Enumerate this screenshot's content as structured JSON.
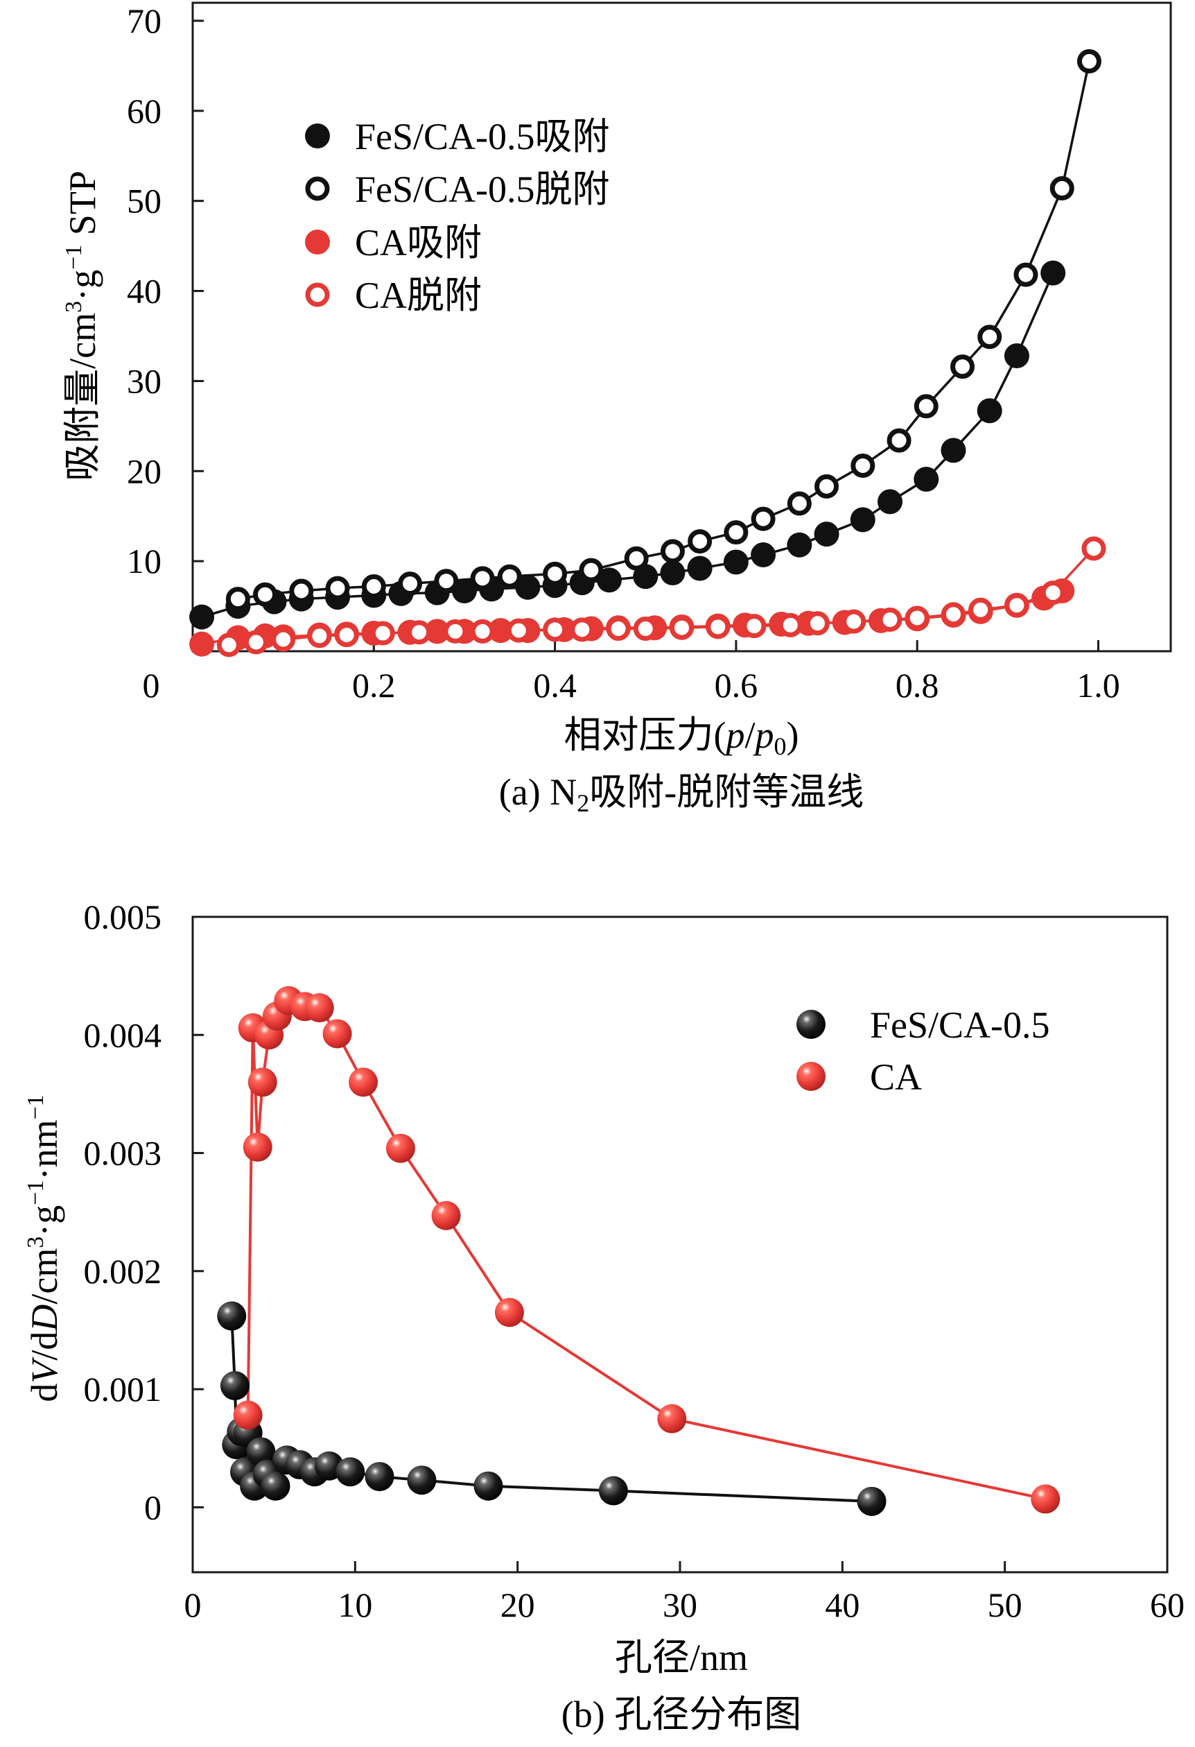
{
  "colors": {
    "black_series": "#111111",
    "red_series": "#e53935",
    "axis": "#1a1a1a"
  },
  "chart_data": [
    {
      "id": "a",
      "type": "scatter",
      "caption": {
        "prefix": "(a) N",
        "sub": "2",
        "suffix": "吸附-脱附等温线"
      },
      "xlabel": {
        "prefix": "相对压力(",
        "p": "p",
        "slash": "/",
        "p0": "p",
        "sub": "0",
        "close": ")"
      },
      "ylabel": {
        "main": "吸附量/cm",
        "sup1": "3",
        "mid": "·g",
        "sup2": "−1",
        "end": " STP"
      },
      "xlim": [
        0,
        1.08
      ],
      "ylim": [
        0,
        72
      ],
      "xticks": [
        0.2,
        0.4,
        0.6,
        0.8,
        1.0
      ],
      "xtick_labels": [
        "0.2",
        "0.4",
        "0.6",
        "0.8",
        "1.0"
      ],
      "yticks": [
        10,
        20,
        30,
        40,
        50,
        60,
        70
      ],
      "ytick_labels": [
        "10",
        "20",
        "30",
        "40",
        "50",
        "60",
        "70"
      ],
      "origin_label": "0",
      "legend_position": "upper-left",
      "series": [
        {
          "name": "FeS/CA-0.5吸附",
          "color": "#111111",
          "filled": true,
          "x": [
            0.01,
            0.05,
            0.09,
            0.12,
            0.16,
            0.2,
            0.23,
            0.27,
            0.3,
            0.33,
            0.37,
            0.4,
            0.43,
            0.46,
            0.5,
            0.53,
            0.56,
            0.6,
            0.63,
            0.67,
            0.7,
            0.74,
            0.77,
            0.81,
            0.84,
            0.88,
            0.91,
            0.95
          ],
          "y": [
            3.8,
            5.0,
            5.5,
            5.8,
            6.0,
            6.2,
            6.4,
            6.5,
            6.7,
            6.9,
            7.1,
            7.3,
            7.6,
            7.9,
            8.3,
            8.7,
            9.2,
            9.9,
            10.7,
            11.8,
            13.0,
            14.6,
            16.6,
            19.1,
            22.3,
            26.7,
            32.8,
            42.0
          ]
        },
        {
          "name": "FeS/CA-0.5脱附",
          "color": "#111111",
          "filled": false,
          "x": [
            0.99,
            0.96,
            0.92,
            0.88,
            0.85,
            0.81,
            0.78,
            0.74,
            0.7,
            0.67,
            0.63,
            0.6,
            0.56,
            0.53,
            0.49,
            0.44,
            0.4,
            0.35,
            0.32,
            0.28,
            0.24,
            0.2,
            0.16,
            0.12,
            0.08,
            0.05
          ],
          "y": [
            65.5,
            51.4,
            41.8,
            34.9,
            31.6,
            27.2,
            23.4,
            20.6,
            18.3,
            16.4,
            14.7,
            13.2,
            12.2,
            11.1,
            10.3,
            9.0,
            8.6,
            8.3,
            8.1,
            7.8,
            7.5,
            7.2,
            7.0,
            6.7,
            6.3,
            5.8
          ]
        },
        {
          "name": "CA吸附",
          "color": "#e53935",
          "filled": true,
          "x": [
            0.01,
            0.05,
            0.08,
            0.1,
            0.14,
            0.17,
            0.2,
            0.24,
            0.27,
            0.3,
            0.34,
            0.37,
            0.41,
            0.44,
            0.47,
            0.51,
            0.54,
            0.58,
            0.61,
            0.65,
            0.68,
            0.72,
            0.76,
            0.8,
            0.84,
            0.87,
            0.91,
            0.94,
            0.96
          ],
          "y": [
            0.8,
            1.5,
            1.7,
            1.6,
            1.8,
            1.9,
            2.0,
            2.1,
            2.2,
            2.2,
            2.3,
            2.3,
            2.4,
            2.5,
            2.6,
            2.6,
            2.7,
            2.8,
            2.9,
            3.0,
            3.1,
            3.2,
            3.4,
            3.6,
            4.0,
            4.4,
            5.1,
            5.9,
            6.7
          ]
        },
        {
          "name": "CA脱附",
          "color": "#e53935",
          "filled": false,
          "x": [
            0.995,
            0.95,
            0.91,
            0.87,
            0.84,
            0.8,
            0.77,
            0.73,
            0.69,
            0.66,
            0.62,
            0.58,
            0.54,
            0.5,
            0.47,
            0.43,
            0.4,
            0.36,
            0.32,
            0.29,
            0.25,
            0.21,
            0.17,
            0.14,
            0.1,
            0.07,
            0.04
          ],
          "y": [
            11.4,
            6.5,
            5.1,
            4.6,
            4.1,
            3.7,
            3.5,
            3.3,
            3.1,
            2.9,
            2.8,
            2.7,
            2.6,
            2.5,
            2.5,
            2.4,
            2.4,
            2.3,
            2.2,
            2.2,
            2.1,
            2.0,
            1.8,
            1.7,
            1.3,
            1.0,
            0.7
          ]
        }
      ]
    },
    {
      "id": "b",
      "type": "line",
      "caption": {
        "text": "(b) 孔径分布图"
      },
      "xlabel": {
        "text": "孔径/nm"
      },
      "ylabel": {
        "d1": "d",
        "V": "V",
        "slash": "/d",
        "D": "D",
        "unit": "/cm",
        "sup1": "3",
        "g": "·g",
        "sup2": "−1",
        "nm": "·nm",
        "sup3": "−1"
      },
      "xlim": [
        0,
        60
      ],
      "ylim": [
        -0.00055,
        0.005
      ],
      "xticks": [
        0,
        10,
        20,
        30,
        40,
        50,
        60
      ],
      "xtick_labels": [
        "0",
        "10",
        "20",
        "30",
        "40",
        "50",
        "60"
      ],
      "yticks": [
        0,
        0.001,
        0.002,
        0.003,
        0.004,
        0.005
      ],
      "ytick_labels": [
        "0",
        "0.001",
        "0.002",
        "0.003",
        "0.004",
        "0.005"
      ],
      "legend_position": "upper-right",
      "series": [
        {
          "name": "FeS/CA-0.5",
          "color": "#111111",
          "x": [
            2.4,
            2.6,
            2.7,
            3.0,
            3.2,
            3.4,
            3.8,
            4.2,
            4.6,
            5.1,
            5.8,
            6.6,
            7.5,
            8.4,
            9.7,
            11.5,
            14.1,
            18.2,
            25.9,
            41.8
          ],
          "y": [
            0.00162,
            0.00103,
            0.00053,
            0.00064,
            0.0003,
            0.00063,
            0.00018,
            0.00047,
            0.00028,
            0.00018,
            0.0004,
            0.00036,
            0.0003,
            0.00035,
            0.0003,
            0.00026,
            0.00023,
            0.00018,
            0.00014,
            5e-05
          ]
        },
        {
          "name": "CA",
          "color": "#e53935",
          "x": [
            3.4,
            3.7,
            4.0,
            4.3,
            4.7,
            5.2,
            5.9,
            6.9,
            7.8,
            8.9,
            10.5,
            12.8,
            15.6,
            19.5,
            29.5,
            52.5
          ],
          "y": [
            0.00078,
            0.00406,
            0.00305,
            0.0036,
            0.004,
            0.00416,
            0.00429,
            0.00424,
            0.00423,
            0.00401,
            0.0036,
            0.00304,
            0.00247,
            0.00165,
            0.00075,
            7e-05
          ]
        }
      ]
    }
  ]
}
